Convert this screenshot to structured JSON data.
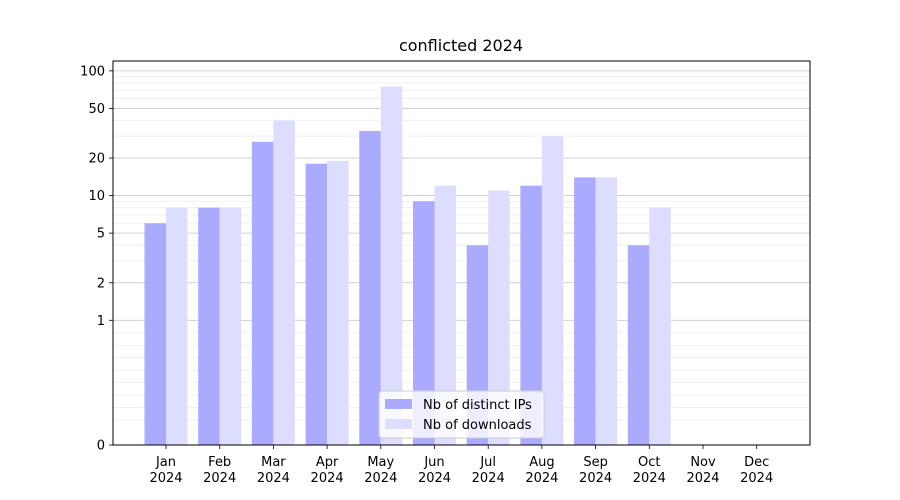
{
  "chart_data": {
    "type": "bar",
    "title": "conflicted 2024",
    "xlabel": "",
    "ylabel": "",
    "yscale": "symlog",
    "ylim": [
      0,
      120
    ],
    "yticks": [
      0,
      1,
      2,
      5,
      10,
      20,
      50,
      100
    ],
    "grid": true,
    "legend_position": "bottom-center",
    "categories": [
      [
        "Jan",
        "2024"
      ],
      [
        "Feb",
        "2024"
      ],
      [
        "Mar",
        "2024"
      ],
      [
        "Apr",
        "2024"
      ],
      [
        "May",
        "2024"
      ],
      [
        "Jun",
        "2024"
      ],
      [
        "Jul",
        "2024"
      ],
      [
        "Aug",
        "2024"
      ],
      [
        "Sep",
        "2024"
      ],
      [
        "Oct",
        "2024"
      ],
      [
        "Nov",
        "2024"
      ],
      [
        "Dec",
        "2024"
      ]
    ],
    "series": [
      {
        "name": "Nb of distinct IPs",
        "color": "#aaaaff",
        "values": [
          6,
          8,
          27,
          18,
          33,
          9,
          4,
          12,
          14,
          4,
          0,
          0
        ]
      },
      {
        "name": "Nb of downloads",
        "color": "#ddddff",
        "values": [
          8,
          8,
          40,
          19,
          75,
          12,
          11,
          30,
          14,
          8,
          0,
          0
        ]
      }
    ]
  }
}
